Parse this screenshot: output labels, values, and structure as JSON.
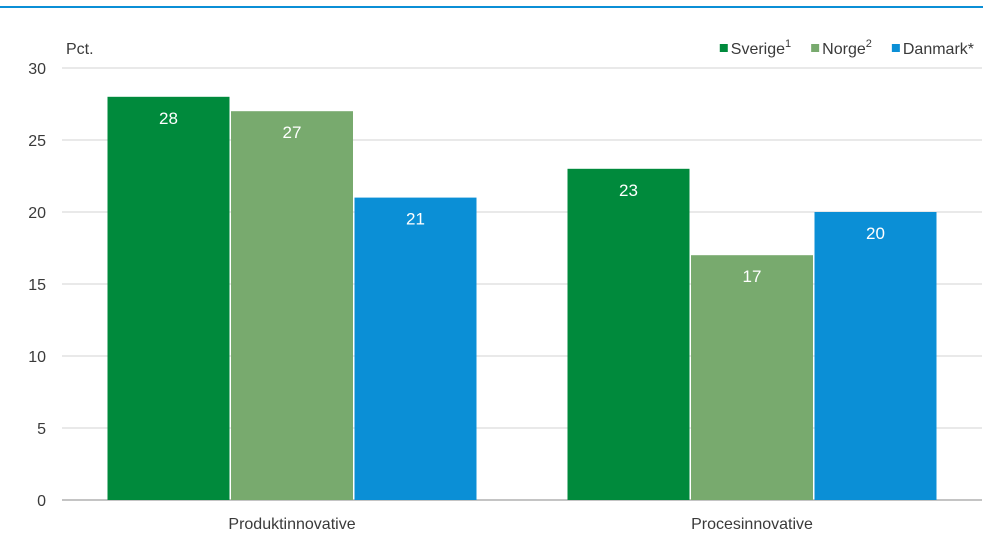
{
  "chart_data": {
    "type": "bar",
    "unit_label": "Pct.",
    "categories": [
      "Produktinnovative",
      "Procesinnovative"
    ],
    "series": [
      {
        "name": "Sverige",
        "superscript": "1",
        "color": "#008a3c",
        "values": [
          28,
          23
        ]
      },
      {
        "name": "Norge",
        "superscript": "2",
        "color": "#78aa6e",
        "values": [
          27,
          17
        ]
      },
      {
        "name": "Danmark*",
        "superscript": "",
        "color": "#0b8fd6",
        "values": [
          21,
          20
        ]
      }
    ],
    "ylim": [
      0,
      30
    ],
    "yticks": [
      0,
      5,
      10,
      15,
      20,
      25,
      30
    ],
    "grid": true,
    "legend_position": "top-right",
    "data_labels": true
  }
}
